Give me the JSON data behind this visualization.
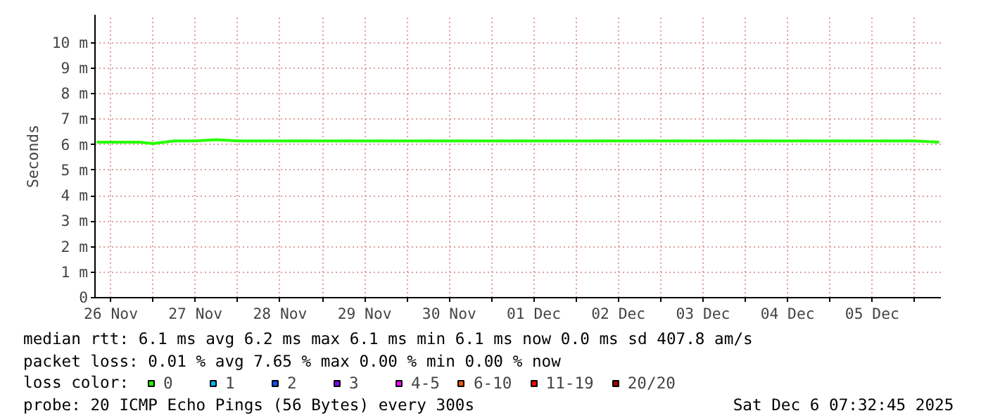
{
  "chart_data": {
    "type": "line",
    "ylabel": "Seconds",
    "legend_title": "loss color:",
    "x": [
      "2025-11-26T08:00",
      "2025-11-26T14:00",
      "2025-11-26T20:00",
      "2025-11-27T00:00",
      "2025-11-27T06:00",
      "2025-11-27T12:00",
      "2025-11-27T18:00",
      "2025-11-28T00:00",
      "2025-11-28T06:00",
      "2025-11-28T12:00",
      "2025-11-28T18:00",
      "2025-11-29T00:00",
      "2025-11-29T06:00",
      "2025-11-29T12:00",
      "2025-11-29T18:00",
      "2025-11-30T00:00",
      "2025-11-30T06:00",
      "2025-11-30T12:00",
      "2025-11-30T18:00",
      "2025-12-01T00:00",
      "2025-12-01T06:00",
      "2025-12-01T12:00",
      "2025-12-01T18:00",
      "2025-12-02T00:00",
      "2025-12-02T06:00",
      "2025-12-02T12:00",
      "2025-12-02T18:00",
      "2025-12-03T00:00",
      "2025-12-03T06:00",
      "2025-12-03T12:00",
      "2025-12-03T18:00",
      "2025-12-04T00:00",
      "2025-12-04T06:00",
      "2025-12-04T12:00",
      "2025-12-04T18:00",
      "2025-12-05T00:00",
      "2025-12-05T06:00",
      "2025-12-05T12:00",
      "2025-12-05T18:00",
      "2025-12-06T00:00",
      "2025-12-06T07:00"
    ],
    "series": [
      {
        "name": "0",
        "color": "#26ff00",
        "values": [
          6.1,
          6.1,
          6.1,
          6.05,
          6.15,
          6.15,
          6.2,
          6.15,
          6.15,
          6.15,
          6.15,
          6.15,
          6.15,
          6.15,
          6.15,
          6.15,
          6.15,
          6.15,
          6.15,
          6.15,
          6.15,
          6.15,
          6.15,
          6.15,
          6.15,
          6.15,
          6.15,
          6.15,
          6.15,
          6.15,
          6.15,
          6.15,
          6.15,
          6.15,
          6.15,
          6.15,
          6.15,
          6.15,
          6.15,
          6.15,
          6.1
        ]
      },
      {
        "name": "1",
        "color": "#00b8ff",
        "values": [
          null,
          null,
          null,
          null,
          null,
          null,
          null,
          null,
          null,
          null,
          null,
          null,
          null,
          null,
          null,
          null,
          null,
          null,
          null,
          null,
          null,
          null,
          null,
          null,
          null,
          null,
          null,
          null,
          null,
          null,
          null,
          null,
          null,
          null,
          null,
          null,
          null,
          null,
          null,
          null,
          null
        ]
      },
      {
        "name": "2",
        "color": "#0059ff",
        "values": [
          null,
          null,
          null,
          null,
          null,
          null,
          null,
          null,
          null,
          null,
          null,
          null,
          null,
          null,
          null,
          null,
          null,
          null,
          null,
          null,
          null,
          null,
          null,
          null,
          null,
          null,
          null,
          null,
          null,
          null,
          null,
          null,
          null,
          null,
          null,
          null,
          null,
          null,
          null,
          null,
          null
        ]
      },
      {
        "name": "3",
        "color": "#7e00ff",
        "values": [
          null,
          null,
          null,
          null,
          null,
          null,
          null,
          null,
          null,
          null,
          null,
          null,
          null,
          null,
          null,
          null,
          null,
          null,
          null,
          null,
          null,
          null,
          null,
          null,
          null,
          null,
          null,
          null,
          null,
          null,
          null,
          null,
          null,
          null,
          null,
          null,
          null,
          null,
          null,
          null,
          null
        ]
      },
      {
        "name": "4-5",
        "color": "#ff00ff",
        "values": [
          null,
          null,
          null,
          null,
          null,
          null,
          null,
          null,
          null,
          null,
          null,
          null,
          null,
          null,
          null,
          null,
          null,
          null,
          null,
          null,
          null,
          null,
          null,
          null,
          null,
          null,
          null,
          null,
          null,
          null,
          null,
          null,
          null,
          null,
          null,
          null,
          null,
          null,
          null,
          null,
          null
        ]
      },
      {
        "name": "6-10",
        "color": "#ff5500",
        "values": [
          null,
          null,
          null,
          null,
          null,
          null,
          null,
          null,
          null,
          null,
          null,
          null,
          null,
          null,
          null,
          null,
          null,
          null,
          null,
          null,
          null,
          null,
          null,
          null,
          null,
          null,
          null,
          null,
          null,
          null,
          null,
          null,
          null,
          null,
          null,
          null,
          null,
          null,
          null,
          null,
          null
        ]
      },
      {
        "name": "11-19",
        "color": "#ff0000",
        "values": [
          null,
          null,
          null,
          null,
          null,
          null,
          null,
          null,
          null,
          null,
          null,
          null,
          null,
          null,
          null,
          null,
          null,
          null,
          null,
          null,
          null,
          null,
          null,
          null,
          null,
          null,
          null,
          null,
          null,
          null,
          null,
          null,
          null,
          null,
          null,
          null,
          null,
          null,
          null,
          null,
          null
        ]
      },
      {
        "name": "20/20",
        "color": "#a10000",
        "values": [
          null,
          null,
          null,
          null,
          null,
          null,
          null,
          null,
          null,
          null,
          null,
          null,
          null,
          null,
          null,
          null,
          null,
          null,
          null,
          null,
          null,
          null,
          null,
          null,
          null,
          null,
          null,
          null,
          null,
          null,
          null,
          null,
          null,
          null,
          null,
          null,
          null,
          null,
          null,
          null,
          null
        ]
      }
    ],
    "xlim": [
      "2025-11-26T07:30",
      "2025-12-06T07:30"
    ],
    "xticks": [
      {
        "value": "2025-11-26T12:00",
        "label": "26 Nov"
      },
      {
        "value": "2025-11-27T00:00",
        "label": null
      },
      {
        "value": "2025-11-27T12:00",
        "label": "27 Nov"
      },
      {
        "value": "2025-11-28T00:00",
        "label": null
      },
      {
        "value": "2025-11-28T12:00",
        "label": "28 Nov"
      },
      {
        "value": "2025-11-29T00:00",
        "label": null
      },
      {
        "value": "2025-11-29T12:00",
        "label": "29 Nov"
      },
      {
        "value": "2025-11-30T00:00",
        "label": null
      },
      {
        "value": "2025-11-30T12:00",
        "label": "30 Nov"
      },
      {
        "value": "2025-12-01T00:00",
        "label": null
      },
      {
        "value": "2025-12-01T12:00",
        "label": "01 Dec"
      },
      {
        "value": "2025-12-02T00:00",
        "label": null
      },
      {
        "value": "2025-12-02T12:00",
        "label": "02 Dec"
      },
      {
        "value": "2025-12-03T00:00",
        "label": null
      },
      {
        "value": "2025-12-03T12:00",
        "label": "03 Dec"
      },
      {
        "value": "2025-12-04T00:00",
        "label": null
      },
      {
        "value": "2025-12-04T12:00",
        "label": "04 Dec"
      },
      {
        "value": "2025-12-05T00:00",
        "label": null
      },
      {
        "value": "2025-12-05T12:00",
        "label": "05 Dec"
      },
      {
        "value": "2025-12-06T00:00",
        "label": null
      }
    ],
    "ylim": [
      0,
      11.1
    ],
    "yticks": [
      0,
      {
        "value": 1,
        "label": "1 m"
      },
      {
        "value": 2,
        "label": "2 m"
      },
      {
        "value": 3,
        "label": "3 m"
      },
      {
        "value": 4,
        "label": "4 m"
      },
      {
        "value": 5,
        "label": "5 m"
      },
      {
        "value": 6,
        "label": "6 m"
      },
      {
        "value": 7,
        "label": "7 m"
      },
      {
        "value": 8,
        "label": "8 m"
      },
      {
        "value": 9,
        "label": "9 m"
      },
      {
        "value": 10,
        "label": "10 m"
      }
    ],
    "grid": true,
    "legend": "bottom",
    "marker": "none",
    "line_style": "solid",
    "annotations": [
      "median rtt:  6.1 ms avg  6.2 ms max  6.1 ms min  6.1 ms now  0.0 ms sd  407.8   am/s",
      "packet loss: 0.01 % avg  7.65 % max  0.00 % min  0.00 % now",
      "probe:       20 ICMP Echo Pings (56 Bytes) every 300s",
      "Sat Dec  6 07:32:45 2025"
    ]
  }
}
